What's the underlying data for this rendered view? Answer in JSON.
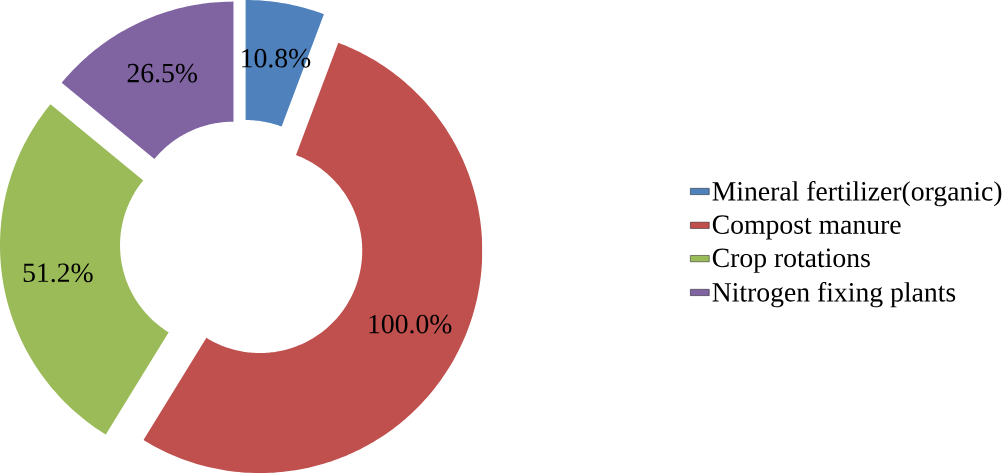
{
  "chart_data": {
    "type": "donut",
    "categories": [
      "Mineral fertilizer(organic)",
      "Compost manure",
      "Crop rotations",
      "Nitrogen fixing plants"
    ],
    "values": [
      10.8,
      100.0,
      51.2,
      26.5
    ],
    "colors": [
      "#4f81bd",
      "#c0504d",
      "#9bbb59",
      "#8064a2"
    ],
    "value_labels": [
      "10.8%",
      "100.0%",
      "51.2%",
      "26.5%"
    ],
    "legend": "right"
  }
}
